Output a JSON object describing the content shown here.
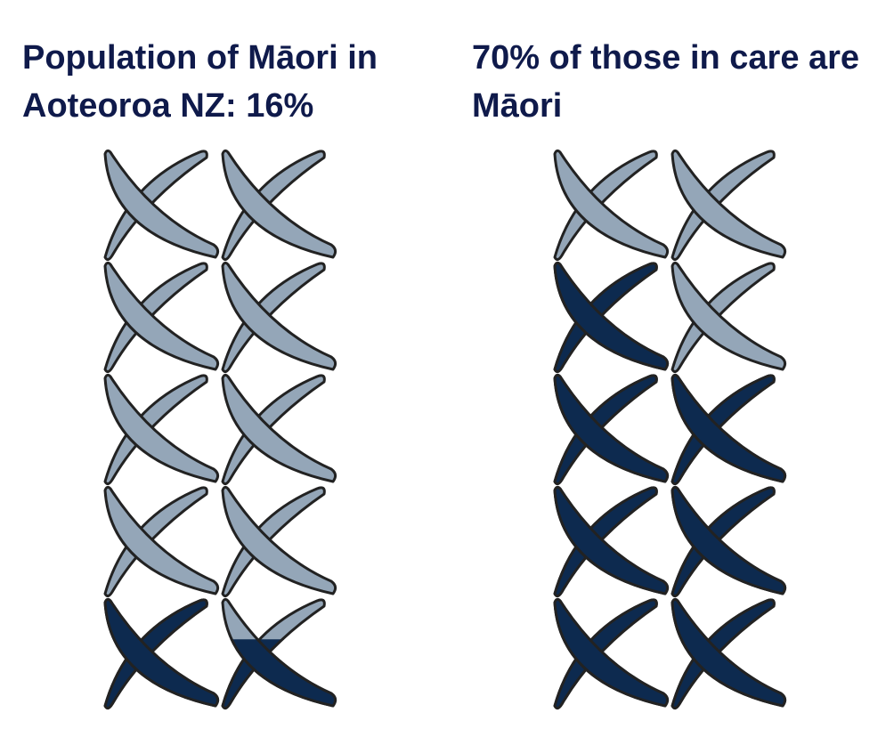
{
  "chart_data": [
    {
      "type": "pictogram",
      "title": "Population of Māori in Aoteoroa NZ: 16%",
      "value": 16,
      "color": "#0d2a4f",
      "base_color": "#94a6b8"
    },
    {
      "type": "pictogram",
      "title": "70% of those in care are Māori",
      "value": 70,
      "color": "#0d2a4f",
      "base_color": "#94a6b8"
    }
  ]
}
